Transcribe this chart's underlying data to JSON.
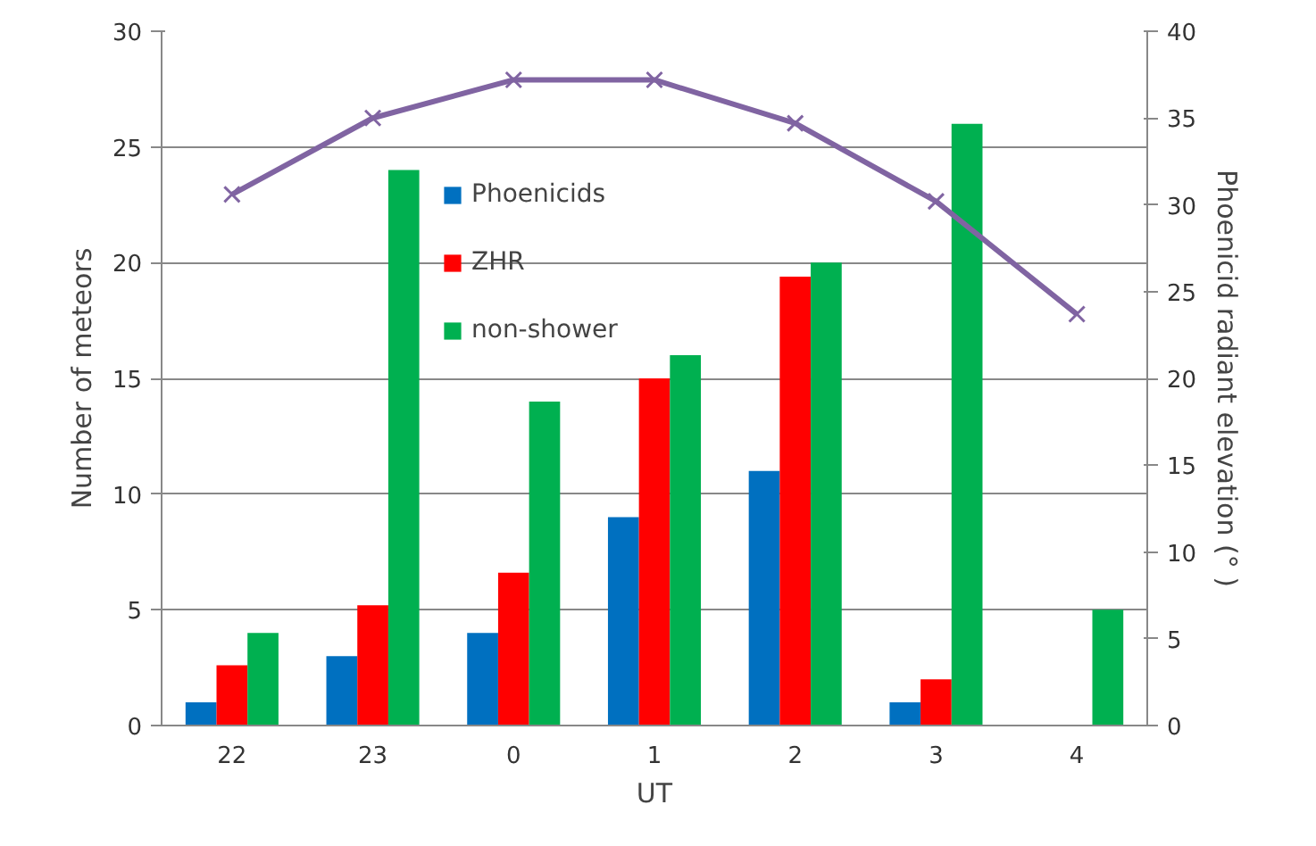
{
  "chart_data": {
    "type": "bar",
    "xlabel": "UT",
    "ylabel": "Number of meteors",
    "y2label": "Phoenicid radiant elevation (° )",
    "categories": [
      "22",
      "23",
      "0",
      "1",
      "2",
      "3",
      "4"
    ],
    "series": [
      {
        "name": "Phoenicids",
        "color": "#0070c0",
        "values": [
          1,
          3,
          4,
          9,
          11,
          1,
          0
        ]
      },
      {
        "name": "ZHR",
        "color": "#ff0000",
        "values": [
          2.6,
          5.2,
          6.6,
          15,
          19.4,
          2,
          0
        ]
      },
      {
        "name": "non-shower",
        "color": "#00b050",
        "values": [
          4,
          24,
          14,
          16,
          20,
          26,
          5
        ]
      },
      {
        "type": "line",
        "axis": "y2",
        "color": "#8064a2",
        "marker": "cross",
        "values": [
          30.6,
          35.0,
          37.2,
          37.2,
          34.7,
          30.2,
          23.7
        ]
      }
    ],
    "ylim": [
      0,
      30
    ],
    "yticks": [
      0,
      5,
      10,
      15,
      20,
      25,
      30
    ],
    "y2lim": [
      0,
      40
    ],
    "y2ticks": [
      0,
      5,
      10,
      15,
      20,
      25,
      30,
      35,
      40
    ],
    "grid": "y",
    "legend": "top left"
  }
}
